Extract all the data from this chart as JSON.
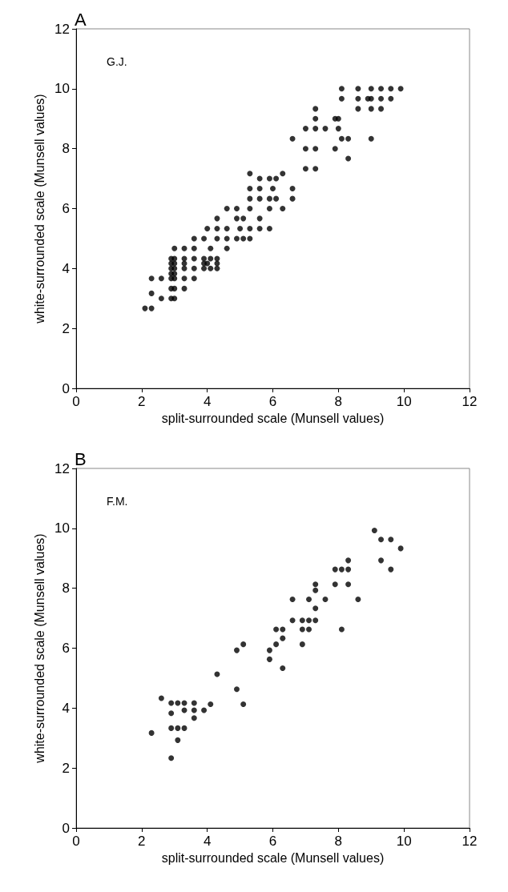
{
  "chart_data": [
    {
      "type": "scatter",
      "title": "A",
      "xlabel": "split-surrounded scale (Munsell values)",
      "ylabel": "white-surrounded scale (Munsell values)",
      "annotations": [
        "G.J."
      ],
      "xlim": [
        0,
        12
      ],
      "ylim": [
        0,
        12
      ],
      "xticks": [
        0,
        2,
        4,
        6,
        8,
        10,
        12
      ],
      "yticks": [
        0,
        2,
        4,
        6,
        8,
        10,
        12
      ],
      "marker": "circle",
      "series": [
        {
          "color": "#000000",
          "x": [
            2.1,
            2.3,
            2.6,
            2.9,
            3.0,
            2.3,
            2.9,
            3.0,
            3.3,
            2.3,
            2.6,
            2.9,
            3.0,
            3.3,
            3.6,
            2.9,
            3.0,
            2.9,
            3.0,
            3.3,
            3.6,
            3.9,
            4.1,
            4.3,
            2.9,
            3.0,
            3.3,
            3.9,
            4.0,
            4.3,
            2.9,
            3.0,
            3.3,
            3.6,
            3.9,
            4.1,
            4.3,
            3.0,
            3.3,
            3.6,
            4.1,
            4.6,
            3.6,
            3.9,
            4.3,
            4.6,
            4.9,
            5.1,
            5.3,
            4.0,
            4.3,
            4.6,
            5.0,
            5.3,
            5.6,
            5.9,
            4.3,
            4.9,
            5.1,
            5.6,
            4.6,
            4.9,
            5.3,
            5.9,
            6.3,
            5.3,
            5.6,
            5.9,
            6.1,
            6.6,
            5.3,
            5.6,
            6.0,
            6.6,
            5.6,
            5.9,
            6.1,
            5.3,
            6.3,
            7.0,
            7.3,
            8.3,
            7.0,
            7.3,
            7.9,
            6.6,
            8.1,
            8.3,
            9.0,
            7.0,
            7.3,
            7.6,
            8.0,
            7.3,
            7.9,
            8.0,
            7.3,
            8.6,
            9.0,
            9.3,
            8.1,
            8.6,
            8.9,
            9.0,
            9.3,
            9.6,
            8.1,
            8.6,
            9.0,
            9.3,
            9.6,
            9.9
          ],
          "values": [
            2.67,
            2.67,
            3.0,
            3.0,
            3.0,
            3.17,
            3.33,
            3.33,
            3.33,
            3.67,
            3.67,
            3.67,
            3.67,
            3.67,
            3.67,
            3.83,
            3.83,
            4.0,
            4.0,
            4.0,
            4.0,
            4.0,
            4.0,
            4.0,
            4.17,
            4.17,
            4.17,
            4.17,
            4.17,
            4.17,
            4.33,
            4.33,
            4.33,
            4.33,
            4.33,
            4.33,
            4.33,
            4.67,
            4.67,
            4.67,
            4.67,
            4.67,
            5.0,
            5.0,
            5.0,
            5.0,
            5.0,
            5.0,
            5.0,
            5.33,
            5.33,
            5.33,
            5.33,
            5.33,
            5.33,
            5.33,
            5.67,
            5.67,
            5.67,
            5.67,
            6.0,
            6.0,
            6.0,
            6.0,
            6.0,
            6.33,
            6.33,
            6.33,
            6.33,
            6.33,
            6.67,
            6.67,
            6.67,
            6.67,
            7.0,
            7.0,
            7.0,
            7.17,
            7.17,
            7.33,
            7.33,
            7.67,
            8.0,
            8.0,
            8.0,
            8.33,
            8.33,
            8.33,
            8.33,
            8.67,
            8.67,
            8.67,
            8.67,
            9.0,
            9.0,
            9.0,
            9.33,
            9.33,
            9.33,
            9.33,
            9.67,
            9.67,
            9.67,
            9.67,
            9.67,
            9.67,
            10.0,
            10.0,
            10.0,
            10.0,
            10.0,
            10.0
          ]
        }
      ]
    },
    {
      "type": "scatter",
      "title": "B",
      "xlabel": "split-surrounded scale (Munsell values)",
      "ylabel": "white-surrounded scale (Munsell values)",
      "annotations": [
        "F.M."
      ],
      "xlim": [
        0,
        12
      ],
      "ylim": [
        0,
        12
      ],
      "xticks": [
        0,
        2,
        4,
        6,
        8,
        10,
        12
      ],
      "yticks": [
        0,
        2,
        4,
        6,
        8,
        10,
        12
      ],
      "marker": "circle",
      "series": [
        {
          "color": "#000000",
          "x": [
            2.3,
            2.6,
            2.9,
            2.9,
            2.9,
            2.9,
            3.1,
            3.1,
            3.1,
            3.3,
            3.3,
            3.3,
            3.6,
            3.6,
            3.6,
            3.9,
            4.1,
            4.3,
            4.9,
            4.9,
            5.1,
            5.1,
            5.9,
            5.9,
            6.1,
            6.1,
            6.3,
            6.3,
            6.3,
            6.6,
            6.6,
            6.9,
            6.9,
            6.9,
            7.1,
            7.1,
            7.1,
            7.3,
            7.3,
            7.3,
            7.3,
            7.6,
            7.9,
            7.9,
            8.1,
            8.1,
            8.3,
            8.3,
            8.3,
            8.6,
            9.1,
            9.3,
            9.3,
            9.6,
            9.6,
            9.9
          ],
          "values": [
            3.17,
            4.33,
            2.33,
            3.33,
            3.83,
            4.17,
            2.93,
            3.33,
            4.17,
            3.33,
            3.93,
            4.17,
            3.67,
            3.93,
            4.17,
            3.93,
            4.13,
            5.13,
            4.63,
            5.93,
            4.13,
            6.13,
            5.63,
            5.93,
            6.13,
            6.63,
            5.33,
            6.33,
            6.63,
            6.93,
            7.63,
            6.13,
            6.63,
            6.93,
            6.63,
            6.93,
            7.63,
            6.93,
            7.33,
            7.93,
            8.13,
            7.63,
            8.13,
            8.63,
            6.63,
            8.63,
            8.13,
            8.63,
            8.93,
            7.63,
            9.93,
            8.93,
            9.63,
            8.63,
            9.63,
            9.33
          ]
        }
      ]
    }
  ]
}
